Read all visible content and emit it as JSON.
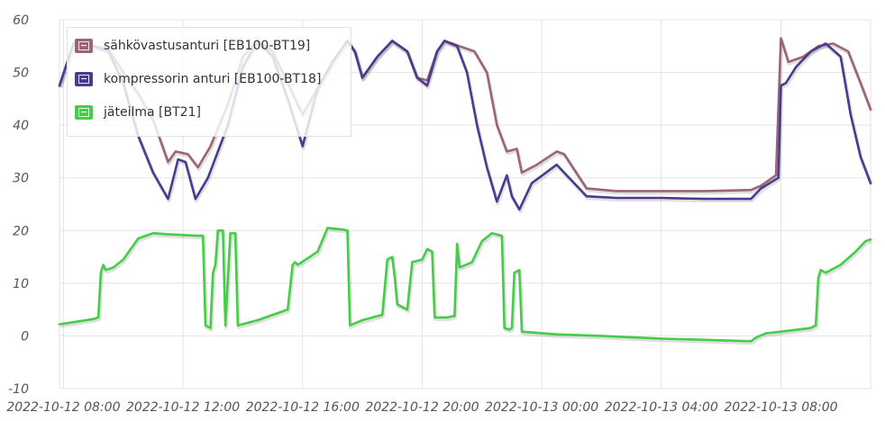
{
  "chart_data": {
    "type": "line",
    "x_ticks": [
      "2022-10-12 08:00",
      "2022-10-12 12:00",
      "2022-10-12 16:00",
      "2022-10-12 20:00",
      "2022-10-13 00:00",
      "2022-10-13 04:00",
      "2022-10-13 08:00"
    ],
    "y_ticks": [
      "60",
      "50",
      "40",
      "30",
      "20",
      "10",
      "0",
      "-10"
    ],
    "ylim": [
      -10,
      60
    ],
    "xlim": [
      "2022-10-12 07:52",
      "2022-10-13 11:00"
    ],
    "grid": true,
    "legend_position": "top-left",
    "series": [
      {
        "name": "sähkövastusanturi [EB100-BT19]",
        "color": "#9b6674",
        "points": [
          [
            "2022-10-12 07:52",
            47.5
          ],
          [
            "2022-10-12 08:20",
            55.5
          ],
          [
            "2022-10-12 09:00",
            55
          ],
          [
            "2022-10-12 09:30",
            54.5
          ],
          [
            "2022-10-12 10:00",
            50
          ],
          [
            "2022-10-12 10:30",
            46
          ],
          [
            "2022-10-12 11:00",
            41
          ],
          [
            "2022-10-12 11:30",
            33
          ],
          [
            "2022-10-12 11:45",
            35
          ],
          [
            "2022-10-12 12:10",
            34.5
          ],
          [
            "2022-10-12 12:30",
            32
          ],
          [
            "2022-10-12 12:55",
            36
          ],
          [
            "2022-10-12 13:30",
            44
          ],
          [
            "2022-10-12 14:00",
            53
          ],
          [
            "2022-10-12 14:30",
            56
          ],
          [
            "2022-10-12 15:00",
            54
          ],
          [
            "2022-10-12 15:30",
            48
          ],
          [
            "2022-10-12 16:00",
            42
          ],
          [
            "2022-10-12 16:30",
            47
          ],
          [
            "2022-10-12 17:00",
            52
          ],
          [
            "2022-10-12 17:30",
            56
          ],
          [
            "2022-10-12 17:45",
            54
          ],
          [
            "2022-10-12 18:00",
            49
          ],
          [
            "2022-10-12 18:30",
            53
          ],
          [
            "2022-10-12 19:00",
            56
          ],
          [
            "2022-10-12 19:30",
            54
          ],
          [
            "2022-10-12 19:50",
            49
          ],
          [
            "2022-10-12 20:10",
            48.5
          ],
          [
            "2022-10-12 20:30",
            54
          ],
          [
            "2022-10-12 20:45",
            56
          ],
          [
            "2022-10-12 21:15",
            55
          ],
          [
            "2022-10-12 21:45",
            54
          ],
          [
            "2022-10-12 22:10",
            50
          ],
          [
            "2022-10-12 22:30",
            40
          ],
          [
            "2022-10-12 22:50",
            35
          ],
          [
            "2022-10-12 23:10",
            35.5
          ],
          [
            "2022-10-12 23:20",
            31
          ],
          [
            "2022-10-12 23:50",
            32.5
          ],
          [
            "2022-10-13 00:30",
            35
          ],
          [
            "2022-10-13 00:45",
            34.5
          ],
          [
            "2022-10-13 01:30",
            28
          ],
          [
            "2022-10-13 02:30",
            27.5
          ],
          [
            "2022-10-13 04:00",
            27.5
          ],
          [
            "2022-10-13 05:30",
            27.5
          ],
          [
            "2022-10-13 07:00",
            27.7
          ],
          [
            "2022-10-13 07:20",
            28.5
          ],
          [
            "2022-10-13 07:50",
            30.5
          ],
          [
            "2022-10-13 08:00",
            56.5
          ],
          [
            "2022-10-13 08:15",
            52
          ],
          [
            "2022-10-13 08:45",
            53
          ],
          [
            "2022-10-13 09:15",
            55
          ],
          [
            "2022-10-13 09:45",
            55.5
          ],
          [
            "2022-10-13 10:15",
            54
          ],
          [
            "2022-10-13 10:40",
            48
          ],
          [
            "2022-10-13 11:00",
            43
          ]
        ]
      },
      {
        "name": "kompressorin anturi [EB100-BT18]",
        "color": "#4b3a8e",
        "points": [
          [
            "2022-10-12 07:52",
            47.5
          ],
          [
            "2022-10-12 08:20",
            55.5
          ],
          [
            "2022-10-12 09:00",
            55
          ],
          [
            "2022-10-12 09:30",
            54
          ],
          [
            "2022-10-12 10:00",
            48
          ],
          [
            "2022-10-12 10:30",
            38
          ],
          [
            "2022-10-12 11:00",
            31
          ],
          [
            "2022-10-12 11:30",
            26
          ],
          [
            "2022-10-12 11:50",
            33.5
          ],
          [
            "2022-10-12 12:05",
            33
          ],
          [
            "2022-10-12 12:25",
            26
          ],
          [
            "2022-10-12 12:50",
            30
          ],
          [
            "2022-10-12 13:30",
            40
          ],
          [
            "2022-10-12 14:00",
            51
          ],
          [
            "2022-10-12 14:30",
            56
          ],
          [
            "2022-10-12 15:00",
            53
          ],
          [
            "2022-10-12 15:30",
            45
          ],
          [
            "2022-10-12 16:00",
            36
          ],
          [
            "2022-10-12 16:30",
            47
          ],
          [
            "2022-10-12 17:00",
            52
          ],
          [
            "2022-10-12 17:30",
            56
          ],
          [
            "2022-10-12 17:45",
            54
          ],
          [
            "2022-10-12 18:00",
            49
          ],
          [
            "2022-10-12 18:30",
            53
          ],
          [
            "2022-10-12 19:00",
            56
          ],
          [
            "2022-10-12 19:30",
            54
          ],
          [
            "2022-10-12 19:50",
            49
          ],
          [
            "2022-10-12 20:10",
            47.5
          ],
          [
            "2022-10-12 20:30",
            54
          ],
          [
            "2022-10-12 20:45",
            56
          ],
          [
            "2022-10-12 21:10",
            55
          ],
          [
            "2022-10-12 21:30",
            50
          ],
          [
            "2022-10-12 21:50",
            40
          ],
          [
            "2022-10-12 22:10",
            32
          ],
          [
            "2022-10-12 22:30",
            25.5
          ],
          [
            "2022-10-12 22:50",
            30.5
          ],
          [
            "2022-10-12 23:00",
            26.5
          ],
          [
            "2022-10-12 23:15",
            24
          ],
          [
            "2022-10-12 23:40",
            29
          ],
          [
            "2022-10-13 00:30",
            32.5
          ],
          [
            "2022-10-13 01:30",
            26.5
          ],
          [
            "2022-10-13 02:30",
            26.2
          ],
          [
            "2022-10-13 04:00",
            26.2
          ],
          [
            "2022-10-13 05:30",
            26.0
          ],
          [
            "2022-10-13 07:00",
            26.0
          ],
          [
            "2022-10-13 07:20",
            28
          ],
          [
            "2022-10-13 07:55",
            30
          ],
          [
            "2022-10-13 08:00",
            47.5
          ],
          [
            "2022-10-13 08:10",
            48
          ],
          [
            "2022-10-13 08:30",
            51
          ],
          [
            "2022-10-13 09:00",
            54
          ],
          [
            "2022-10-13 09:30",
            55.5
          ],
          [
            "2022-10-13 10:00",
            53
          ],
          [
            "2022-10-13 10:20",
            42
          ],
          [
            "2022-10-13 10:40",
            34
          ],
          [
            "2022-10-13 11:00",
            29
          ]
        ]
      },
      {
        "name": "jäteilma [BT21]",
        "color": "#46cc46",
        "points": [
          [
            "2022-10-12 07:52",
            2.2
          ],
          [
            "2022-10-12 09:00",
            3.2
          ],
          [
            "2022-10-12 09:10",
            3.5
          ],
          [
            "2022-10-12 09:15",
            12
          ],
          [
            "2022-10-12 09:20",
            13.5
          ],
          [
            "2022-10-12 09:25",
            12.5
          ],
          [
            "2022-10-12 09:40",
            13
          ],
          [
            "2022-10-12 10:00",
            14.5
          ],
          [
            "2022-10-12 10:30",
            18.5
          ],
          [
            "2022-10-12 11:00",
            19.5
          ],
          [
            "2022-10-12 11:30",
            19.3
          ],
          [
            "2022-10-12 12:30",
            19
          ],
          [
            "2022-10-12 12:40",
            19
          ],
          [
            "2022-10-12 12:45",
            2
          ],
          [
            "2022-10-12 12:55",
            1.5
          ],
          [
            "2022-10-12 13:00",
            12
          ],
          [
            "2022-10-12 13:05",
            13.5
          ],
          [
            "2022-10-12 13:10",
            20
          ],
          [
            "2022-10-12 13:20",
            20
          ],
          [
            "2022-10-12 13:25",
            2
          ],
          [
            "2022-10-12 13:35",
            19.5
          ],
          [
            "2022-10-12 13:45",
            19.5
          ],
          [
            "2022-10-12 13:50",
            2
          ],
          [
            "2022-10-12 14:30",
            3
          ],
          [
            "2022-10-12 15:30",
            5
          ],
          [
            "2022-10-12 15:40",
            13.5
          ],
          [
            "2022-10-12 15:45",
            14
          ],
          [
            "2022-10-12 15:50",
            13.5
          ],
          [
            "2022-10-12 16:30",
            16
          ],
          [
            "2022-10-12 16:50",
            20.5
          ],
          [
            "2022-10-12 17:20",
            20.2
          ],
          [
            "2022-10-12 17:30",
            20
          ],
          [
            "2022-10-12 17:35",
            2
          ],
          [
            "2022-10-12 18:00",
            3
          ],
          [
            "2022-10-12 18:40",
            4
          ],
          [
            "2022-10-12 18:50",
            14.5
          ],
          [
            "2022-10-12 19:00",
            15
          ],
          [
            "2022-10-12 19:05",
            11
          ],
          [
            "2022-10-12 19:10",
            6
          ],
          [
            "2022-10-12 19:30",
            5
          ],
          [
            "2022-10-12 19:40",
            14
          ],
          [
            "2022-10-12 20:00",
            14.5
          ],
          [
            "2022-10-12 20:10",
            16.5
          ],
          [
            "2022-10-12 20:20",
            16
          ],
          [
            "2022-10-12 20:25",
            3.5
          ],
          [
            "2022-10-12 20:50",
            3.5
          ],
          [
            "2022-10-12 21:05",
            3.8
          ],
          [
            "2022-10-12 21:10",
            17.5
          ],
          [
            "2022-10-12 21:15",
            13
          ],
          [
            "2022-10-12 21:40",
            14
          ],
          [
            "2022-10-12 22:00",
            18
          ],
          [
            "2022-10-12 22:20",
            19.5
          ],
          [
            "2022-10-12 22:40",
            19
          ],
          [
            "2022-10-12 22:45",
            1.5
          ],
          [
            "2022-10-12 22:55",
            1.2
          ],
          [
            "2022-10-12 23:00",
            1.5
          ],
          [
            "2022-10-12 23:05",
            12
          ],
          [
            "2022-10-12 23:15",
            12.5
          ],
          [
            "2022-10-12 23:20",
            0.8
          ],
          [
            "2022-10-13 00:30",
            0.3
          ],
          [
            "2022-10-13 02:00",
            0
          ],
          [
            "2022-10-13 04:00",
            -0.5
          ],
          [
            "2022-10-13 07:00",
            -1
          ],
          [
            "2022-10-13 07:10",
            -0.3
          ],
          [
            "2022-10-13 07:30",
            0.5
          ],
          [
            "2022-10-13 08:00",
            0.8
          ],
          [
            "2022-10-13 09:00",
            1.5
          ],
          [
            "2022-10-13 09:10",
            2
          ],
          [
            "2022-10-13 09:15",
            11
          ],
          [
            "2022-10-13 09:20",
            12.5
          ],
          [
            "2022-10-13 09:30",
            12
          ],
          [
            "2022-10-13 10:00",
            13.5
          ],
          [
            "2022-10-13 10:30",
            16
          ],
          [
            "2022-10-13 10:50",
            18
          ],
          [
            "2022-10-13 11:00",
            18.3
          ]
        ]
      }
    ]
  }
}
